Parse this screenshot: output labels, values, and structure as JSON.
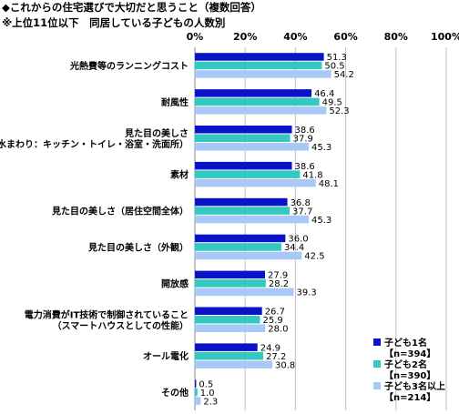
{
  "title": "◆これからの住宅選びで大切だと思うこと（複数回答）",
  "subtitle": "※上位11位以下　同居している子どもの人数別",
  "chart_data": {
    "type": "bar",
    "orientation": "horizontal",
    "xlim": [
      0,
      100
    ],
    "tick_labels": [
      "0%",
      "20%",
      "40%",
      "60%",
      "80%",
      "100%"
    ],
    "grid": true,
    "legend_position": "bottom-right",
    "categories": [
      [
        "光熱費等のランニングコスト"
      ],
      [
        "耐風性"
      ],
      [
        "見た目の美しさ",
        "（水まわり：キッチン・トイレ・浴室・洗面所）"
      ],
      [
        "素材"
      ],
      [
        "見た目の美しさ（居住空間全体）"
      ],
      [
        "見た目の美しさ（外観）"
      ],
      [
        "開放感"
      ],
      [
        "電力消費がIT技術で制御されていること",
        "（スマートハウスとしての性能）"
      ],
      [
        "オール電化"
      ],
      [
        "その他"
      ]
    ],
    "series": [
      {
        "name": "子ども1名",
        "n": "【n=394】",
        "color": "#0b13c9",
        "values": [
          51.3,
          46.4,
          38.6,
          38.6,
          36.8,
          36.0,
          27.9,
          26.7,
          24.9,
          0.5
        ],
        "labels": [
          "51.3",
          "46.4",
          "38.6",
          "38.6",
          "36.8",
          "36.0",
          "27.9",
          "26.7",
          "24.9",
          "0.5"
        ]
      },
      {
        "name": "子ども2名",
        "n": "【n=390】",
        "color": "#33c8c0",
        "values": [
          50.5,
          49.5,
          37.9,
          41.8,
          37.7,
          34.4,
          28.2,
          25.9,
          27.2,
          1.0
        ],
        "labels": [
          "50.5",
          "49.5",
          "37.9",
          "41.8",
          "37.7",
          "34.4",
          "28.2",
          "25.9",
          "27.2",
          "1.0"
        ]
      },
      {
        "name": "子ども3名以上",
        "n": "【n=214】",
        "color": "#a8c8f8",
        "values": [
          54.2,
          52.3,
          45.3,
          48.1,
          45.3,
          42.5,
          39.3,
          28.0,
          30.8,
          2.3
        ],
        "labels": [
          "54.2",
          "52.3",
          "45.3",
          "48.1",
          "45.3",
          "42.5",
          "39.3",
          "28.0",
          "30.8",
          "2.3"
        ]
      }
    ]
  }
}
